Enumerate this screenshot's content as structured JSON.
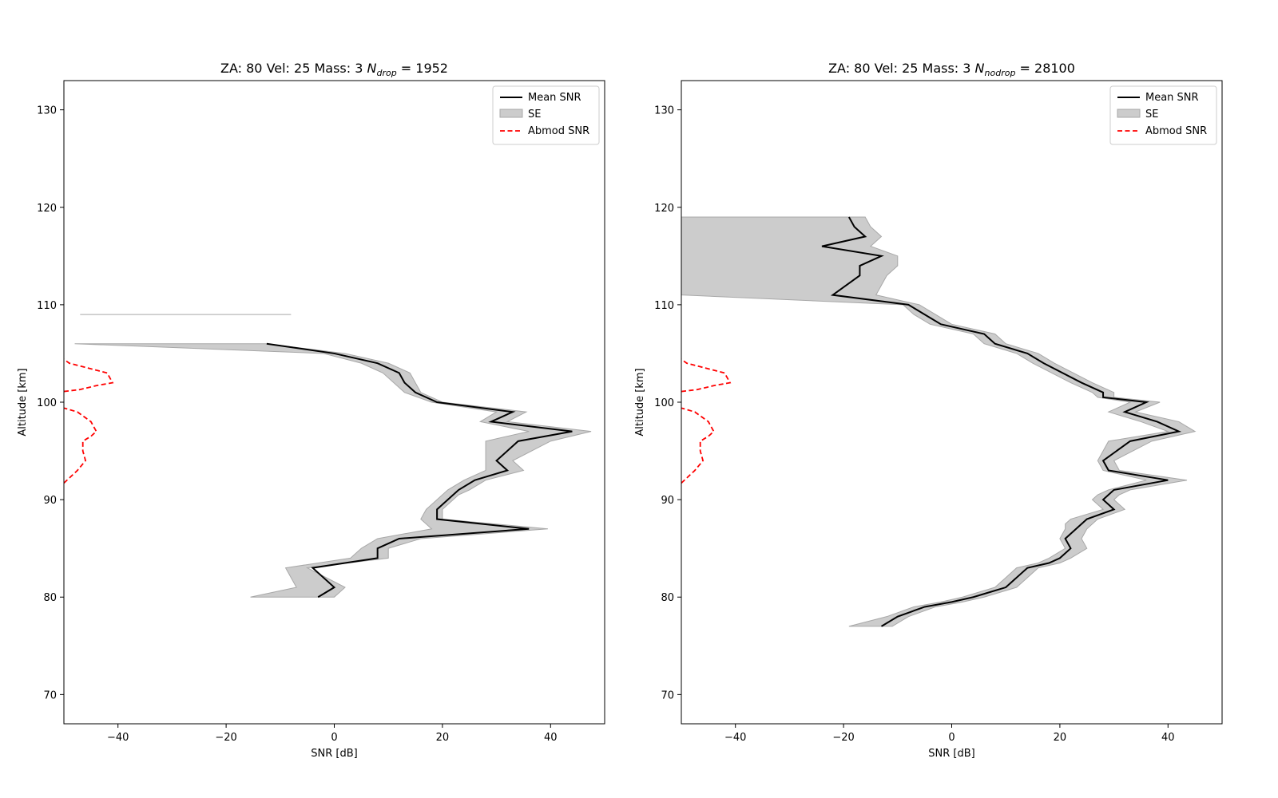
{
  "colors": {
    "mean": "#000000",
    "se_fill": "#cccccc",
    "se_edge": "#a8a8a8",
    "abmod": "#ff0000",
    "frame": "#000000"
  },
  "chart_data": [
    {
      "type": "line",
      "title_prefix": "ZA: 80 Vel: 25 Mass: 3 ",
      "title_symbol": "N",
      "title_subscript": "drop",
      "title_suffix": " = 1952",
      "xlabel": "SNR [dB]",
      "ylabel": "Altitude [km]",
      "xlim": [
        -50,
        50
      ],
      "ylim": [
        67,
        133
      ],
      "xticks": [
        -40,
        -20,
        0,
        20,
        40
      ],
      "yticks": [
        70,
        80,
        90,
        100,
        110,
        120,
        130
      ],
      "xtick_labels": [
        "−40",
        "−20",
        "0",
        "20",
        "40"
      ],
      "ytick_labels": [
        "70",
        "80",
        "90",
        "100",
        "110",
        "120",
        "130"
      ],
      "grid": false,
      "legend_position": "top-right",
      "legend": [
        "Mean SNR",
        "SE",
        "Abmod SNR"
      ],
      "mean_snr": {
        "name": "Mean SNR",
        "x": [
          -3,
          0,
          -4,
          8,
          8,
          12,
          36,
          19,
          19,
          21,
          22,
          23,
          26,
          32,
          30,
          34,
          44,
          29,
          33,
          19,
          15,
          13,
          12,
          8,
          0,
          -12.5
        ],
        "y": [
          80,
          81,
          83,
          84,
          85,
          86,
          87,
          88,
          89,
          90,
          90.5,
          91,
          92,
          93,
          94,
          96,
          97,
          98,
          99,
          100,
          101,
          102,
          103,
          104,
          105,
          106
        ]
      },
      "se": {
        "name": "SE",
        "lower_x": [
          -15.5,
          -7,
          -9,
          3,
          5,
          8,
          18,
          16,
          17,
          19,
          20,
          21,
          24,
          28,
          28,
          28,
          36,
          27,
          30,
          18,
          13,
          11,
          9,
          5,
          -2,
          -48
        ],
        "upper_x": [
          0,
          2,
          -5,
          10,
          10,
          16,
          39.5,
          20,
          20,
          22,
          23,
          25,
          28,
          35,
          33,
          40,
          47.5,
          32,
          35.5,
          20,
          16,
          15,
          14,
          10,
          2,
          -12.5
        ],
        "y": [
          80,
          81,
          83,
          84,
          85,
          86,
          87,
          88,
          89,
          90,
          90.5,
          91,
          92,
          93,
          94,
          96,
          97,
          98,
          99,
          100,
          101,
          102,
          103,
          104,
          105,
          106
        ],
        "extra_band": {
          "x_lower": -47,
          "x_upper": -8,
          "y": 109
        }
      },
      "abmod_snr": {
        "name": "Abmod SNR",
        "x": [
          -50,
          -47.5,
          -46,
          -46.5,
          -46.5,
          -45,
          -44,
          -45,
          -47.5,
          -50,
          null,
          -50,
          -47,
          -44,
          -41,
          -42,
          -49,
          -50
        ],
        "y": [
          91.7,
          93,
          94,
          95,
          96,
          96.5,
          97,
          98,
          99,
          99.4,
          null,
          101.1,
          101.3,
          101.7,
          102,
          103,
          104,
          104.4
        ]
      }
    },
    {
      "type": "line",
      "title_prefix": "ZA: 80 Vel: 25 Mass: 3 ",
      "title_symbol": "N",
      "title_subscript": "nodrop",
      "title_suffix": " = 28100",
      "xlabel": "SNR [dB]",
      "ylabel": "Altitude [km]",
      "xlim": [
        -50,
        50
      ],
      "ylim": [
        67,
        133
      ],
      "xticks": [
        -40,
        -20,
        0,
        20,
        40
      ],
      "yticks": [
        70,
        80,
        90,
        100,
        110,
        120,
        130
      ],
      "xtick_labels": [
        "−40",
        "−20",
        "0",
        "20",
        "40"
      ],
      "ytick_labels": [
        "70",
        "80",
        "90",
        "100",
        "110",
        "120",
        "130"
      ],
      "grid": false,
      "legend_position": "top-right",
      "legend": [
        "Mean SNR",
        "SE",
        "Abmod SNR"
      ],
      "mean_snr": {
        "name": "Mean SNR",
        "x": [
          -13,
          -10,
          -5,
          0,
          4,
          7,
          10,
          12,
          14,
          18,
          20,
          22,
          21,
          23,
          24,
          25,
          30,
          28,
          29,
          30,
          40,
          29,
          28,
          33,
          42,
          38,
          32,
          36,
          28,
          28,
          24,
          17,
          14,
          8,
          6,
          -2,
          -5,
          -8,
          -22,
          -17,
          -17,
          -13,
          -24,
          -16,
          -18,
          -19
        ],
        "y": [
          77,
          78,
          79,
          79.5,
          80,
          80.5,
          81,
          82,
          83,
          83.5,
          84,
          85,
          86,
          87,
          87.5,
          88,
          89,
          90,
          90.5,
          91,
          92,
          93,
          94,
          96,
          97,
          98,
          99,
          100,
          100.5,
          101,
          102,
          104,
          105,
          106,
          107,
          108,
          109,
          110,
          111,
          113,
          114,
          115,
          116,
          117,
          118,
          119
        ]
      },
      "se": {
        "name": "SE",
        "lower_x": [
          -19,
          -12,
          -7,
          -2,
          2,
          5,
          8,
          10,
          12,
          16,
          18,
          21,
          20,
          21,
          21,
          22,
          28,
          26,
          27,
          29,
          36,
          28,
          27,
          29,
          40,
          35,
          29,
          33,
          27,
          26,
          22,
          15,
          12,
          6,
          4,
          -4,
          -7,
          -9,
          -50,
          -50,
          -50,
          -50,
          -50,
          -50,
          -50,
          -50
        ],
        "upper_x": [
          -11,
          -8,
          -3,
          2,
          6,
          9,
          12,
          14,
          16,
          20,
          22,
          25,
          24,
          25,
          26,
          27,
          32,
          30,
          31,
          33,
          43.5,
          31,
          30,
          37,
          45,
          42,
          34,
          38.5,
          30,
          30,
          26,
          19,
          16,
          10,
          8,
          0,
          -3,
          -6,
          -14,
          -12,
          -10,
          -10,
          -15,
          -13,
          -15,
          -16
        ],
        "y": [
          77,
          78,
          79,
          79.5,
          80,
          80.5,
          81,
          82,
          83,
          83.5,
          84,
          85,
          86,
          87,
          87.5,
          88,
          89,
          90,
          90.5,
          91,
          92,
          93,
          94,
          96,
          97,
          98,
          99,
          100,
          100.5,
          101,
          102,
          104,
          105,
          106,
          107,
          108,
          109,
          110,
          111,
          113,
          114,
          115,
          116,
          117,
          118,
          119
        ]
      },
      "abmod_snr": {
        "name": "Abmod SNR",
        "x": [
          -50,
          -47.5,
          -46,
          -46.5,
          -46.5,
          -45,
          -44,
          -45,
          -47.5,
          -50,
          null,
          -50,
          -47,
          -44,
          -41,
          -42,
          -49,
          -50
        ],
        "y": [
          91.7,
          93,
          94,
          95,
          96,
          96.5,
          97,
          98,
          99,
          99.4,
          null,
          101.1,
          101.3,
          101.7,
          102,
          103,
          104,
          104.4
        ]
      }
    }
  ]
}
